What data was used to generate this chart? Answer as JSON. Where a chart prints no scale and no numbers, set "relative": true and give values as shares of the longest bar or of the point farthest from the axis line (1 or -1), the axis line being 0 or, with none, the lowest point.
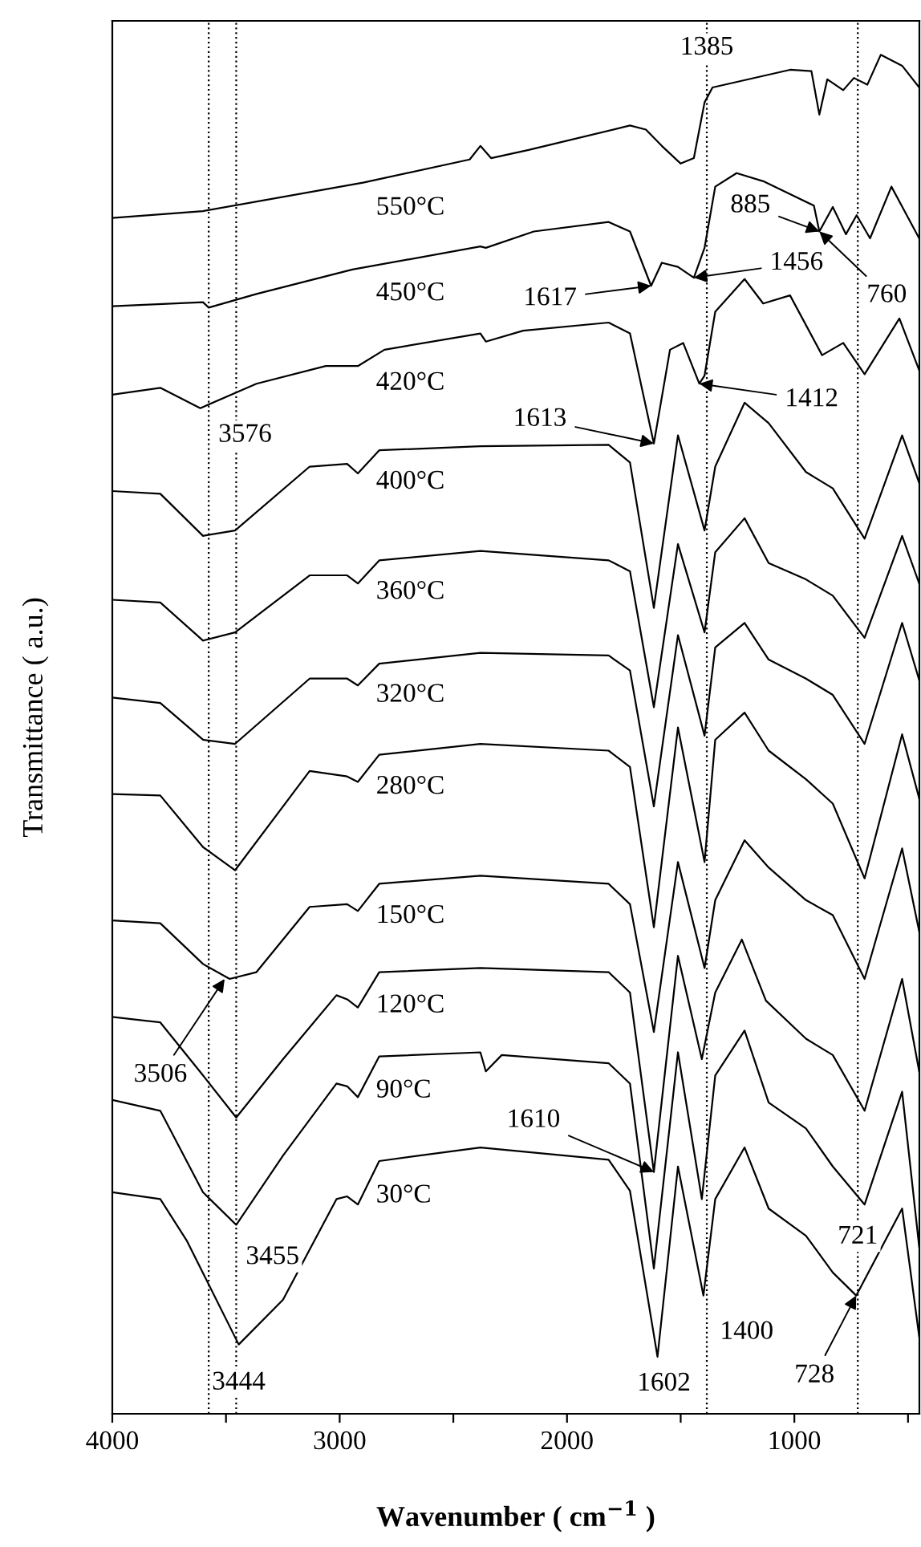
{
  "chart_data": {
    "type": "line",
    "relative": true,
    "xlabel": "Wavenumber ( cm$^{−1}$ )",
    "ylabel": "Transmittance ( a.u.)",
    "tick_labels": "x",
    "grid": false,
    "marker": "none",
    "line_style": "solid",
    "xlim": [
      4000,
      450
    ],
    "xticks": [
      4000,
      3000,
      2000,
      1000,
      {
        "value": 3500,
        "label": null
      },
      {
        "value": 2500,
        "label": null
      },
      {
        "value": 1500,
        "label": null
      },
      {
        "value": 500,
        "label": null
      }
    ],
    "series": [
      {
        "name": "550°C",
        "color": "#000000",
        "x": [
          4000,
          3601,
          2897,
          2428,
          2381,
          2334,
          2169,
          1723,
          1653,
          1583,
          1500,
          1442,
          1395,
          1360,
          1019,
          925,
          890,
          855,
          785,
          738,
          679,
          620,
          526,
          451
        ],
        "values": [
          0.88,
          0.885,
          0.906,
          0.923,
          0.933,
          0.924,
          0.93,
          0.948,
          0.945,
          0.933,
          0.92,
          0.924,
          0.965,
          0.976,
          0.989,
          0.988,
          0.956,
          0.982,
          0.974,
          0.983,
          0.978,
          1.0,
          0.992,
          0.976
        ]
      },
      {
        "name": "450°C",
        "color": "#000000",
        "x": [
          4000,
          3601,
          3576,
          3366,
          2944,
          2381,
          2357,
          2146,
          1817,
          1723,
          1630,
          1583,
          1512,
          1442,
          1395,
          1348,
          1254,
          1137,
          914,
          890,
          831,
          773,
          726,
          667,
          573,
          451
        ],
        "values": [
          0.815,
          0.818,
          0.814,
          0.824,
          0.842,
          0.859,
          0.858,
          0.87,
          0.877,
          0.87,
          0.83,
          0.847,
          0.844,
          0.836,
          0.858,
          0.903,
          0.913,
          0.907,
          0.889,
          0.87,
          0.888,
          0.868,
          0.882,
          0.865,
          0.903,
          0.865
        ]
      },
      {
        "name": "420°C",
        "color": "#000000",
        "x": [
          4000,
          3789,
          3613,
          3366,
          3061,
          2920,
          2803,
          2381,
          2357,
          2193,
          1817,
          1723,
          1618,
          1547,
          1489,
          1418,
          1395,
          1348,
          1219,
          1137,
          1019,
          878,
          785,
          691,
          538,
          451
        ],
        "values": [
          0.75,
          0.755,
          0.74,
          0.758,
          0.771,
          0.771,
          0.783,
          0.795,
          0.789,
          0.797,
          0.803,
          0.795,
          0.714,
          0.783,
          0.788,
          0.758,
          0.764,
          0.811,
          0.835,
          0.817,
          0.823,
          0.779,
          0.788,
          0.765,
          0.806,
          0.768
        ]
      },
      {
        "name": "400°C",
        "color": "#000000",
        "x": [
          4000,
          3789,
          3601,
          3460,
          3132,
          2967,
          2920,
          2826,
          2381,
          1817,
          1723,
          1618,
          1512,
          1395,
          1348,
          1219,
          1113,
          949,
          831,
          691,
          526,
          451
        ],
        "values": [
          0.679,
          0.677,
          0.646,
          0.65,
          0.697,
          0.699,
          0.692,
          0.709,
          0.712,
          0.713,
          0.7,
          0.593,
          0.72,
          0.65,
          0.697,
          0.744,
          0.729,
          0.693,
          0.681,
          0.644,
          0.72,
          0.685
        ]
      },
      {
        "name": "360°C",
        "color": "#000000",
        "x": [
          4000,
          3789,
          3601,
          3460,
          3132,
          2967,
          2920,
          2826,
          2381,
          1817,
          1723,
          1618,
          1512,
          1395,
          1348,
          1219,
          1113,
          949,
          831,
          691,
          526,
          451
        ],
        "values": [
          0.599,
          0.597,
          0.569,
          0.575,
          0.617,
          0.617,
          0.611,
          0.628,
          0.635,
          0.628,
          0.62,
          0.52,
          0.64,
          0.575,
          0.634,
          0.659,
          0.626,
          0.614,
          0.602,
          0.571,
          0.646,
          0.611
        ]
      },
      {
        "name": "320°C",
        "color": "#000000",
        "x": [
          4000,
          3789,
          3601,
          3460,
          3132,
          2967,
          2920,
          2826,
          2381,
          1817,
          1723,
          1618,
          1512,
          1395,
          1348,
          1219,
          1113,
          949,
          831,
          691,
          526,
          451
        ],
        "values": [
          0.527,
          0.523,
          0.496,
          0.493,
          0.541,
          0.541,
          0.536,
          0.552,
          0.56,
          0.558,
          0.547,
          0.447,
          0.573,
          0.499,
          0.564,
          0.582,
          0.555,
          0.541,
          0.529,
          0.493,
          0.582,
          0.54
        ]
      },
      {
        "name": "280°C",
        "color": "#000000",
        "x": [
          4000,
          3789,
          3601,
          3460,
          3132,
          2967,
          2920,
          2826,
          2381,
          1817,
          1723,
          1618,
          1512,
          1395,
          1348,
          1219,
          1113,
          949,
          831,
          691,
          526,
          451
        ],
        "values": [
          0.456,
          0.455,
          0.417,
          0.4,
          0.473,
          0.469,
          0.465,
          0.485,
          0.493,
          0.488,
          0.476,
          0.358,
          0.505,
          0.406,
          0.496,
          0.516,
          0.488,
          0.467,
          0.449,
          0.394,
          0.5,
          0.453
        ]
      },
      {
        "name": "150°C",
        "color": "#000000",
        "x": [
          4000,
          3789,
          3601,
          3484,
          3366,
          3132,
          2967,
          2920,
          2826,
          2381,
          1817,
          1723,
          1618,
          1512,
          1395,
          1348,
          1219,
          1113,
          949,
          831,
          691,
          526,
          451
        ],
        "values": [
          0.363,
          0.361,
          0.331,
          0.32,
          0.325,
          0.373,
          0.375,
          0.37,
          0.39,
          0.396,
          0.39,
          0.375,
          0.281,
          0.406,
          0.328,
          0.378,
          0.422,
          0.402,
          0.378,
          0.367,
          0.32,
          0.416,
          0.355
        ]
      },
      {
        "name": "120°C",
        "color": "#000000",
        "x": [
          4000,
          3789,
          3601,
          3455,
          3249,
          3014,
          2967,
          2920,
          2826,
          2381,
          1817,
          1723,
          1618,
          1512,
          1407,
          1348,
          1231,
          1125,
          949,
          831,
          691,
          526,
          451
        ],
        "values": [
          0.292,
          0.288,
          0.249,
          0.218,
          0.261,
          0.308,
          0.305,
          0.299,
          0.325,
          0.328,
          0.325,
          0.31,
          0.178,
          0.337,
          0.261,
          0.31,
          0.349,
          0.304,
          0.276,
          0.264,
          0.223,
          0.32,
          0.252
        ]
      },
      {
        "name": "90°C",
        "color": "#000000",
        "x": [
          4000,
          3789,
          3601,
          3455,
          3249,
          3014,
          2967,
          2920,
          2826,
          2381,
          2357,
          2287,
          1817,
          1723,
          1618,
          1512,
          1407,
          1348,
          1219,
          1113,
          949,
          831,
          691,
          526,
          451
        ],
        "values": [
          0.231,
          0.223,
          0.163,
          0.139,
          0.19,
          0.243,
          0.241,
          0.233,
          0.263,
          0.266,
          0.252,
          0.264,
          0.258,
          0.243,
          0.107,
          0.266,
          0.158,
          0.249,
          0.282,
          0.229,
          0.21,
          0.182,
          0.154,
          0.237,
          0.123
        ]
      },
      {
        "name": "30°C",
        "color": "#000000",
        "x": [
          4000,
          3789,
          3671,
          3444,
          3249,
          3014,
          2967,
          2920,
          2826,
          2381,
          1817,
          1723,
          1602,
          1512,
          1400,
          1348,
          1219,
          1113,
          949,
          831,
          728,
          526,
          451
        ],
        "values": [
          0.163,
          0.158,
          0.127,
          0.051,
          0.084,
          0.158,
          0.16,
          0.154,
          0.186,
          0.196,
          0.187,
          0.164,
          0.042,
          0.182,
          0.087,
          0.158,
          0.196,
          0.151,
          0.131,
          0.104,
          0.087,
          0.151,
          0.057
        ]
      }
    ],
    "ref_lines": [
      {
        "axis": "x",
        "value": 3576,
        "label": "3576",
        "color": "#000000",
        "line_style": "dotted"
      },
      {
        "axis": "x",
        "value": 3455,
        "label": "3455",
        "color": "#000000",
        "line_style": "dotted"
      },
      {
        "axis": "x",
        "value": 1385,
        "label": "1385",
        "color": "#000000",
        "line_style": "dotted"
      },
      {
        "axis": "x",
        "value": 721,
        "label": "721",
        "color": "#000000",
        "line_style": "dotted"
      }
    ],
    "annotations": [
      {
        "text": "1617",
        "x": 1630,
        "y": 0.83
      },
      {
        "text": "1456",
        "x": 1442,
        "y": 0.836
      },
      {
        "text": "885",
        "x": 890,
        "y": 0.87
      },
      {
        "text": "760",
        "x": 890,
        "y": 0.87
      },
      {
        "text": "1412",
        "x": 1418,
        "y": 0.758
      },
      {
        "text": "1613",
        "x": 1618,
        "y": 0.714
      },
      {
        "text": "3506",
        "x": 3506,
        "y": 0.32
      },
      {
        "text": "1610",
        "x": 1618,
        "y": 0.178
      },
      {
        "text": "728",
        "x": 728,
        "y": 0.087
      },
      {
        "text": "3444",
        "x": 3444,
        "y": 0.051
      },
      {
        "text": "1602",
        "x": 1602,
        "y": 0.042
      },
      {
        "text": "1400",
        "x": 1400,
        "y": 0.087
      }
    ]
  }
}
